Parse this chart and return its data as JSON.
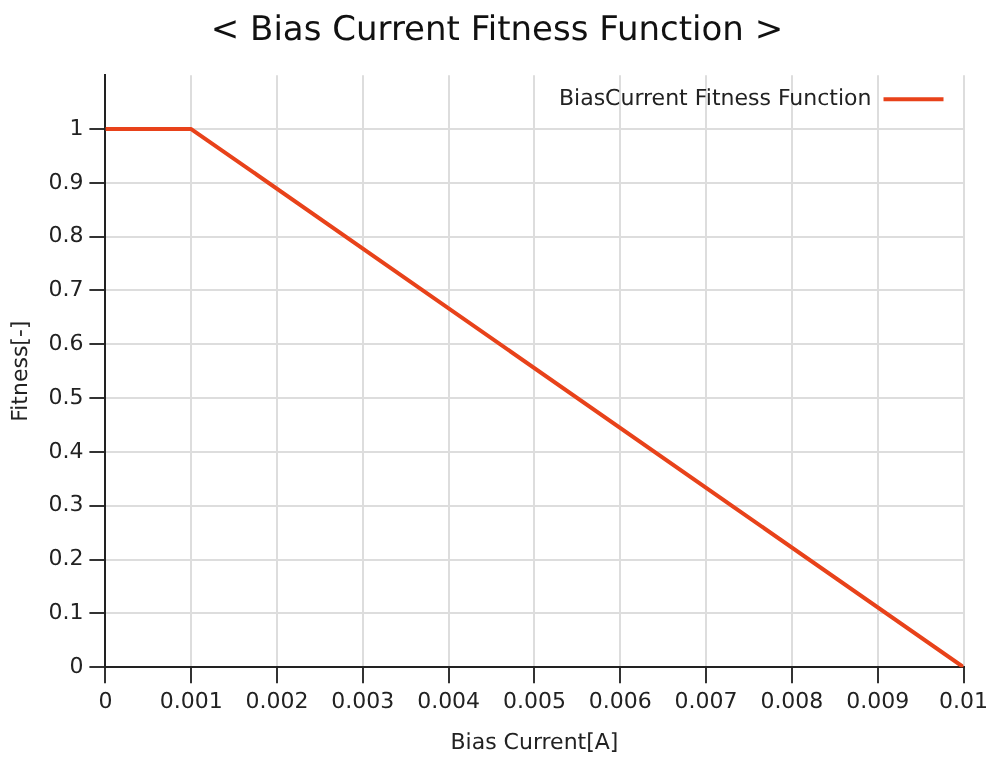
{
  "chart_data": {
    "type": "line",
    "title": "< Bias Current Fitness Function >",
    "xlabel": "Bias Current[A]",
    "ylabel": "Fitness[-]",
    "x": [
      0,
      0.001,
      0.01
    ],
    "series": [
      {
        "name": "BiasCurrent Fitness Function",
        "color": "#e8421a",
        "values": [
          1,
          1,
          0
        ]
      }
    ],
    "xlim": [
      0,
      0.01
    ],
    "xticks": [
      0,
      0.001,
      0.002,
      0.003,
      0.004,
      0.005,
      0.006,
      0.007,
      0.008,
      0.009,
      0.01
    ],
    "ylim": [
      0,
      1.1
    ],
    "yticks": [
      0,
      0.1,
      0.2,
      0.3,
      0.4,
      0.5,
      0.6,
      0.7,
      0.8,
      0.9,
      1
    ],
    "grid": true,
    "legend": "top right",
    "marker": "none",
    "line_style": "solid"
  }
}
